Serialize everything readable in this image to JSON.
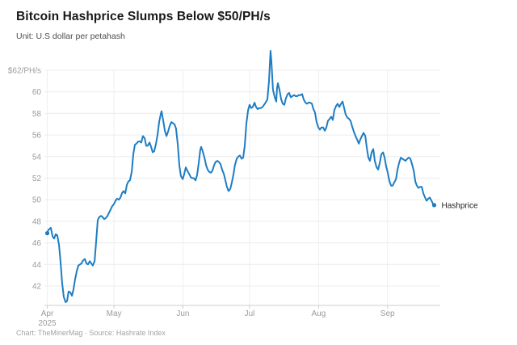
{
  "header": {
    "title": "Bitcoin Hashprice Slumps Below $50/PH/s",
    "subtitle": "Unit: U.S dollar per petahash"
  },
  "footer": {
    "credit": "Chart: TheMinerMag · Source: Hashrate Index"
  },
  "colors": {
    "line": "#1d7dc4",
    "gridline_h": "#ececec",
    "gridline_v": "#efefef",
    "axis_line": "#cfcfcf",
    "axis_label": "#9b9b9b",
    "end_label": "#222222"
  },
  "chart_data": {
    "type": "line",
    "title": "Bitcoin Hashprice Slumps Below $50/PH/s",
    "unit_label": "Unit: U.S dollar per petahash",
    "legend_position": "end-of-line",
    "grid": true,
    "y_axis": {
      "top_label": "$62/PH/s",
      "ticks": [
        62,
        60,
        58,
        56,
        54,
        52,
        50,
        48,
        46,
        44,
        42
      ],
      "ylim": [
        40.2,
        64
      ]
    },
    "x_axis": {
      "domain_days": [
        0,
        174
      ],
      "ticks": [
        {
          "label": "Apr",
          "sublabel": "2025",
          "day": 0
        },
        {
          "label": "May",
          "day": 30
        },
        {
          "label": "Jun",
          "day": 61
        },
        {
          "label": "Jul",
          "day": 91
        },
        {
          "label": "Aug",
          "day": 122
        },
        {
          "label": "Sep",
          "day": 153
        }
      ]
    },
    "series": [
      {
        "name": "Hashprice",
        "color": "#1d7dc4",
        "markers": "endpoints",
        "points": [
          [
            0,
            46.9
          ],
          [
            0.5,
            47.2
          ],
          [
            1.6,
            47.4
          ],
          [
            2.4,
            46.6
          ],
          [
            3.1,
            46.4
          ],
          [
            3.8,
            46.8
          ],
          [
            4.5,
            46.7
          ],
          [
            5.3,
            45.8
          ],
          [
            6,
            44.2
          ],
          [
            6.7,
            42.3
          ],
          [
            7.4,
            41
          ],
          [
            8.2,
            40.5
          ],
          [
            8.9,
            40.6
          ],
          [
            9.6,
            41.5
          ],
          [
            10.4,
            41.4
          ],
          [
            11.1,
            41.1
          ],
          [
            11.8,
            41.7
          ],
          [
            12.5,
            42.6
          ],
          [
            13.3,
            43.4
          ],
          [
            14,
            43.9
          ],
          [
            14.7,
            44
          ],
          [
            15.4,
            44.1
          ],
          [
            16.2,
            44.4
          ],
          [
            16.9,
            44.5
          ],
          [
            17.6,
            44.1
          ],
          [
            18.3,
            44
          ],
          [
            19.1,
            44.3
          ],
          [
            19.8,
            44.1
          ],
          [
            20.5,
            43.9
          ],
          [
            21.3,
            44.3
          ],
          [
            22,
            46.2
          ],
          [
            22.7,
            48.1
          ],
          [
            23.4,
            48.4
          ],
          [
            24.2,
            48.5
          ],
          [
            24.9,
            48.4
          ],
          [
            25.6,
            48.2
          ],
          [
            26.3,
            48.3
          ],
          [
            27.1,
            48.5
          ],
          [
            27.8,
            48.8
          ],
          [
            28.5,
            49.1
          ],
          [
            29.2,
            49.4
          ],
          [
            30,
            49.6
          ],
          [
            30.7,
            49.9
          ],
          [
            31.4,
            50.1
          ],
          [
            32.2,
            50
          ],
          [
            32.9,
            50.2
          ],
          [
            33.6,
            50.6
          ],
          [
            34.3,
            50.8
          ],
          [
            35.1,
            50.6
          ],
          [
            35.8,
            51.4
          ],
          [
            36.5,
            51.7
          ],
          [
            37.2,
            51.8
          ],
          [
            38,
            52.6
          ],
          [
            38.7,
            54.2
          ],
          [
            39.4,
            55.1
          ],
          [
            40.1,
            55.2
          ],
          [
            40.9,
            55.4
          ],
          [
            41.6,
            55.4
          ],
          [
            42.3,
            55.3
          ],
          [
            43,
            55.9
          ],
          [
            43.8,
            55.7
          ],
          [
            44.5,
            55
          ],
          [
            45.2,
            55
          ],
          [
            46,
            55.3
          ],
          [
            46.7,
            54.9
          ],
          [
            47.4,
            54.4
          ],
          [
            48.1,
            54.5
          ],
          [
            48.9,
            55.2
          ],
          [
            49.6,
            56
          ],
          [
            50.3,
            57.2
          ],
          [
            51,
            57.9
          ],
          [
            51.4,
            58.2
          ],
          [
            52.1,
            57.4
          ],
          [
            52.9,
            56.4
          ],
          [
            53.6,
            55.9
          ],
          [
            54.3,
            56.3
          ],
          [
            55,
            56.8
          ],
          [
            55.8,
            57.2
          ],
          [
            56.5,
            57.1
          ],
          [
            57.2,
            57
          ],
          [
            57.9,
            56.6
          ],
          [
            58.7,
            55.1
          ],
          [
            59.4,
            53.2
          ],
          [
            60.1,
            52.2
          ],
          [
            60.9,
            51.9
          ],
          [
            61.6,
            52.4
          ],
          [
            62.3,
            53
          ],
          [
            63,
            52.7
          ],
          [
            63.8,
            52.4
          ],
          [
            64.5,
            52.1
          ],
          [
            65.2,
            52
          ],
          [
            65.9,
            52
          ],
          [
            66.7,
            51.8
          ],
          [
            67.4,
            52.3
          ],
          [
            68.1,
            53.4
          ],
          [
            68.8,
            54.6
          ],
          [
            69.2,
            54.9
          ],
          [
            69.9,
            54.5
          ],
          [
            70.7,
            53.9
          ],
          [
            71.4,
            53.2
          ],
          [
            72.1,
            52.8
          ],
          [
            72.8,
            52.6
          ],
          [
            73.6,
            52.5
          ],
          [
            74.3,
            52.7
          ],
          [
            75,
            53.2
          ],
          [
            75.7,
            53.5
          ],
          [
            76.5,
            53.6
          ],
          [
            77.2,
            53.5
          ],
          [
            77.9,
            53.3
          ],
          [
            78.6,
            52.8
          ],
          [
            79.4,
            52.4
          ],
          [
            80.1,
            51.8
          ],
          [
            80.8,
            51.2
          ],
          [
            81.5,
            50.8
          ],
          [
            82.3,
            51
          ],
          [
            83,
            51.6
          ],
          [
            83.7,
            52.3
          ],
          [
            84.4,
            53.2
          ],
          [
            85.2,
            53.8
          ],
          [
            85.9,
            54
          ],
          [
            86.6,
            54.1
          ],
          [
            87.4,
            53.8
          ],
          [
            88.1,
            53.9
          ],
          [
            88.8,
            55
          ],
          [
            89.5,
            57
          ],
          [
            90.3,
            58.3
          ],
          [
            91,
            58.8
          ],
          [
            91.7,
            58.5
          ],
          [
            92.4,
            58.6
          ],
          [
            93.2,
            59
          ],
          [
            93.9,
            58.6
          ],
          [
            94.6,
            58.4
          ],
          [
            95.3,
            58.5
          ],
          [
            96.1,
            58.5
          ],
          [
            96.8,
            58.6
          ],
          [
            97.5,
            58.8
          ],
          [
            98.2,
            59
          ],
          [
            99,
            59.3
          ],
          [
            99.7,
            61
          ],
          [
            100.4,
            63.8
          ],
          [
            100.8,
            62.8
          ],
          [
            101.5,
            60.2
          ],
          [
            102.3,
            59.5
          ],
          [
            103,
            59.1
          ],
          [
            103.3,
            60.3
          ],
          [
            103.7,
            60.8
          ],
          [
            104.4,
            60.2
          ],
          [
            105.2,
            59.3
          ],
          [
            105.9,
            58.9
          ],
          [
            106.6,
            58.8
          ],
          [
            107.3,
            59.4
          ],
          [
            108.1,
            59.8
          ],
          [
            108.8,
            59.9
          ],
          [
            109.5,
            59.5
          ],
          [
            110.2,
            59.6
          ],
          [
            111,
            59.7
          ],
          [
            111.7,
            59.6
          ],
          [
            112.4,
            59.6
          ],
          [
            113.1,
            59.7
          ],
          [
            113.9,
            59.7
          ],
          [
            114.6,
            59.8
          ],
          [
            115.3,
            59.3
          ],
          [
            116.1,
            59
          ],
          [
            116.8,
            58.9
          ],
          [
            117.5,
            59
          ],
          [
            118.2,
            59
          ],
          [
            119,
            58.9
          ],
          [
            119.7,
            58.4
          ],
          [
            120.4,
            58.1
          ],
          [
            121.1,
            57.2
          ],
          [
            121.9,
            56.7
          ],
          [
            122.6,
            56.5
          ],
          [
            123.3,
            56.7
          ],
          [
            124.1,
            56.7
          ],
          [
            124.8,
            56.4
          ],
          [
            125.5,
            56.7
          ],
          [
            126.2,
            57.3
          ],
          [
            127,
            57.5
          ],
          [
            127.7,
            57.7
          ],
          [
            128.4,
            57.4
          ],
          [
            129.1,
            58.3
          ],
          [
            129.9,
            58.7
          ],
          [
            130.6,
            58.9
          ],
          [
            131.3,
            58.6
          ],
          [
            132.1,
            58.9
          ],
          [
            132.8,
            59.1
          ],
          [
            133.5,
            58.5
          ],
          [
            134.2,
            57.9
          ],
          [
            135,
            57.6
          ],
          [
            135.7,
            57.5
          ],
          [
            136.4,
            57.3
          ],
          [
            137.1,
            56.8
          ],
          [
            137.9,
            56.3
          ],
          [
            138.6,
            55.9
          ],
          [
            139.3,
            55.6
          ],
          [
            140.1,
            55.2
          ],
          [
            140.8,
            55.6
          ],
          [
            141.5,
            55.9
          ],
          [
            142.2,
            56.2
          ],
          [
            143,
            55.9
          ],
          [
            143.7,
            54.8
          ],
          [
            144.4,
            53.9
          ],
          [
            145.1,
            53.6
          ],
          [
            145.9,
            54.4
          ],
          [
            146.6,
            54.7
          ],
          [
            147.3,
            53.6
          ],
          [
            148.1,
            53
          ],
          [
            148.8,
            52.8
          ],
          [
            149.5,
            53.4
          ],
          [
            150.2,
            54.2
          ],
          [
            151,
            54.4
          ],
          [
            151.7,
            53.9
          ],
          [
            152.4,
            53.1
          ],
          [
            153.1,
            52.5
          ],
          [
            153.9,
            51.7
          ],
          [
            154.6,
            51.3
          ],
          [
            155.3,
            51.3
          ],
          [
            156,
            51.6
          ],
          [
            156.8,
            51.9
          ],
          [
            157.5,
            52.8
          ],
          [
            158.2,
            53.4
          ],
          [
            159,
            53.9
          ],
          [
            159.7,
            53.8
          ],
          [
            160.4,
            53.7
          ],
          [
            161.1,
            53.6
          ],
          [
            161.9,
            53.8
          ],
          [
            162.6,
            53.9
          ],
          [
            163.3,
            53.8
          ],
          [
            164,
            53.3
          ],
          [
            164.8,
            52.7
          ],
          [
            165.5,
            51.7
          ],
          [
            166.2,
            51.3
          ],
          [
            166.9,
            51.1
          ],
          [
            167.7,
            51.2
          ],
          [
            168.4,
            51.2
          ],
          [
            169.1,
            50.6
          ],
          [
            169.9,
            50.2
          ],
          [
            170.6,
            49.9
          ],
          [
            171.3,
            50.1
          ],
          [
            172,
            50.2
          ],
          [
            172.8,
            49.9
          ],
          [
            173.5,
            49.6
          ],
          [
            174,
            49.5
          ]
        ]
      }
    ]
  }
}
